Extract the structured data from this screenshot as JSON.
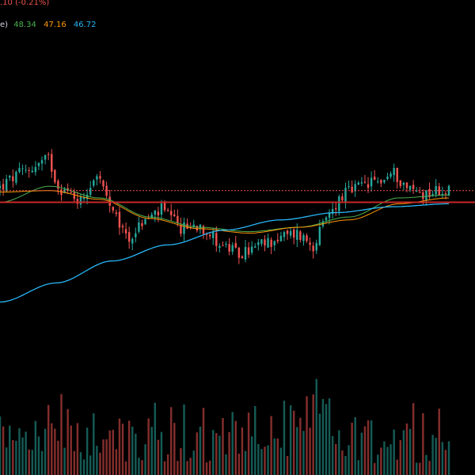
{
  "header": {
    "change_text": ".10 (-0.21%)",
    "ma_label_tail": "e)",
    "ma_values": [
      "48.34",
      "47.16",
      "46.72"
    ]
  },
  "colors": {
    "background": "#000000",
    "up": "#26a69a",
    "down": "#ef5350",
    "ma_short": "#4caf50",
    "ma_mid": "#ff9800",
    "ma_long": "#29b6f6",
    "support_line": "#c62828",
    "price_line": "#ef5350",
    "header_change": "#ef5350",
    "header_text": "#d1d4dc"
  },
  "chart_data": {
    "type": "candlestick",
    "title": "",
    "y_range": [
      40.5,
      54.0
    ],
    "n_candles": 140,
    "price_levels": {
      "current_price_dotted": 49.1,
      "support_line": 48.3
    },
    "moving_averages": [
      {
        "name": "48.34",
        "color": "#4caf50",
        "values_at_keypoints": [
          48.3,
          49.4,
          48.6,
          47.3,
          46.6,
          46.3,
          46.6,
          47.3,
          48.6,
          48.8
        ]
      },
      {
        "name": "47.16",
        "color": "#ff9800",
        "values_at_keypoints": [
          49.0,
          49.1,
          48.5,
          47.2,
          46.5,
          46.2,
          46.6,
          47.1,
          48.2,
          48.6
        ]
      },
      {
        "name": "46.72",
        "color": "#29b6f6",
        "values_at_keypoints": [
          41.5,
          42.8,
          44.3,
          45.4,
          46.4,
          47.1,
          47.6,
          48.0,
          48.2
        ]
      }
    ],
    "close_keypoints": [
      [
        0,
        49.3
      ],
      [
        5,
        50.1
      ],
      [
        12,
        50.9
      ],
      [
        15,
        51.3
      ],
      [
        18,
        49.4
      ],
      [
        25,
        48.4
      ],
      [
        30,
        50.3
      ],
      [
        35,
        47.4
      ],
      [
        40,
        45.8
      ],
      [
        44,
        46.9
      ],
      [
        50,
        47.8
      ],
      [
        56,
        46.5
      ],
      [
        62,
        46.8
      ],
      [
        68,
        45.5
      ],
      [
        74,
        44.7
      ],
      [
        80,
        45.3
      ],
      [
        87,
        45.9
      ],
      [
        92,
        46.2
      ],
      [
        97,
        45.4
      ],
      [
        102,
        47.5
      ],
      [
        106,
        48.8
      ],
      [
        112,
        49.4
      ],
      [
        118,
        49.8
      ],
      [
        122,
        50.3
      ],
      [
        126,
        49.3
      ],
      [
        131,
        48.9
      ],
      [
        135,
        49.1
      ],
      [
        139,
        49.1
      ]
    ]
  }
}
